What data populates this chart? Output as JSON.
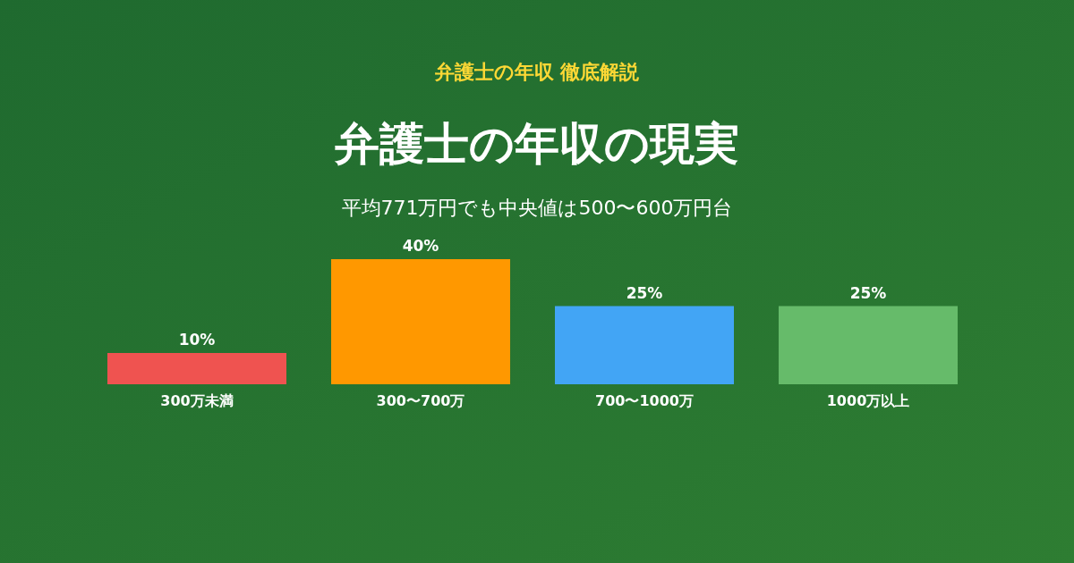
{
  "chart_data": {
    "type": "bar",
    "annotations": [
      "弁護士の年収 徹底解説"
    ],
    "title": "弁護士の年収の現実",
    "subtitle": "平均771万円でも中央値は500〜600万円台",
    "categories": [
      "300万未満",
      "300〜700万",
      "700〜1000万",
      "1000万以上"
    ],
    "values": [
      10,
      40,
      25,
      25
    ],
    "colors": [
      "#ef5350",
      "#ff9800",
      "#42a5f5",
      "#66bb6a"
    ],
    "value_labels": [
      "10%",
      "40%",
      "25%",
      "25%"
    ]
  }
}
